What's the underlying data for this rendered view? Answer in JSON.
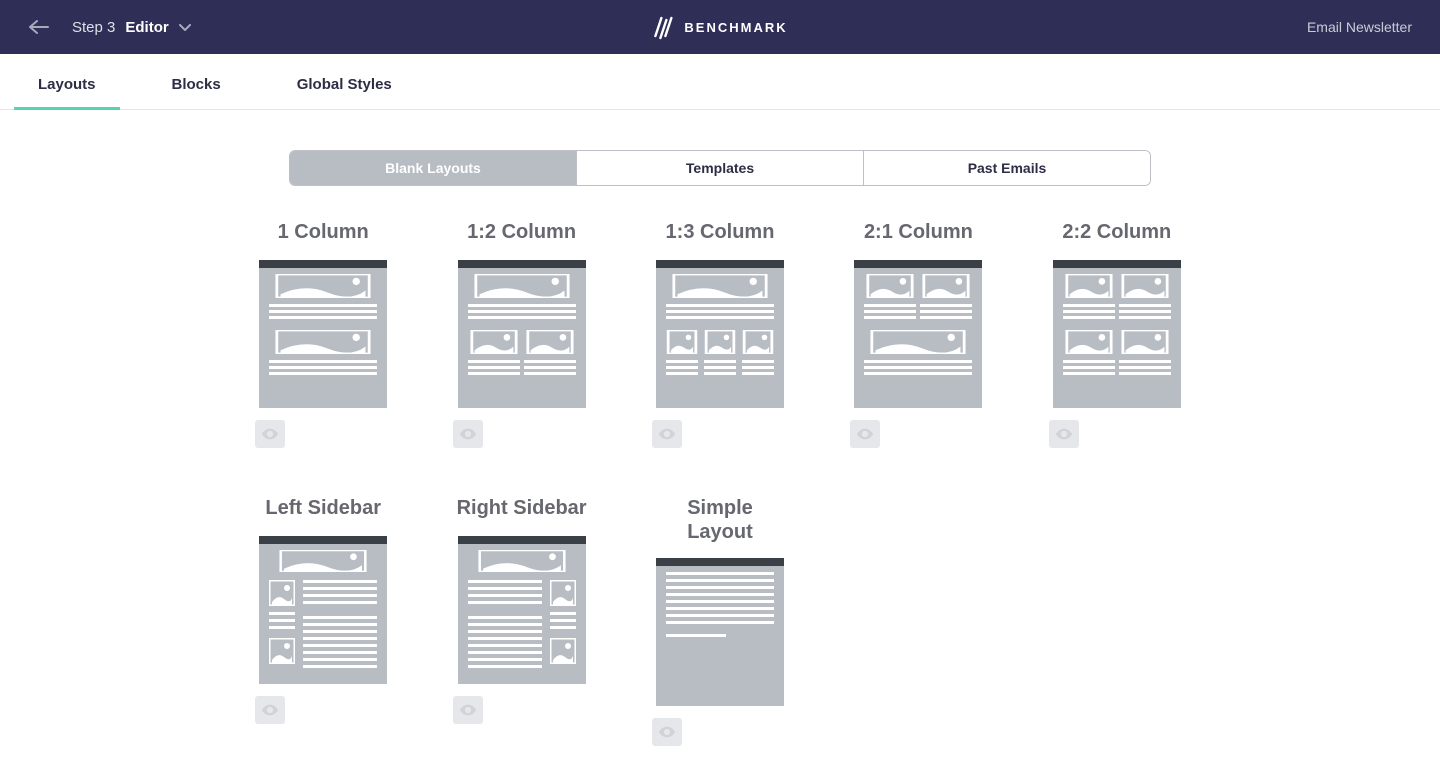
{
  "colors": {
    "topbar_bg": "#2e2e57",
    "accent": "#55d4b0",
    "seg_active_bg": "#b8bcc3",
    "thumb_bg": "#b8bcc3",
    "thumb_header": "#3b3f46",
    "preview_bg": "#e6e7ea",
    "text_muted": "#66676f",
    "border": "#e6e6ea"
  },
  "topbar": {
    "step_prefix": "Step 3",
    "step_name": "Editor",
    "brand": "BENCHMARK",
    "right_label": "Email Newsletter"
  },
  "subnav": {
    "items": [
      "Layouts",
      "Blocks",
      "Global Styles"
    ],
    "active_index": 0
  },
  "segmented": {
    "items": [
      "Blank Layouts",
      "Templates",
      "Past Emails"
    ],
    "active_index": 0
  },
  "layouts": [
    {
      "title": "1 Column",
      "type": "one"
    },
    {
      "title": "1:2 Column",
      "type": "one-two"
    },
    {
      "title": "1:3 Column",
      "type": "one-three"
    },
    {
      "title": "2:1 Column",
      "type": "two-one"
    },
    {
      "title": "2:2 Column",
      "type": "two-two"
    },
    {
      "title": "Left Sidebar",
      "type": "left-sidebar"
    },
    {
      "title": "Right Sidebar",
      "type": "right-sidebar"
    },
    {
      "title": "Simple\nLayout",
      "type": "simple"
    }
  ]
}
